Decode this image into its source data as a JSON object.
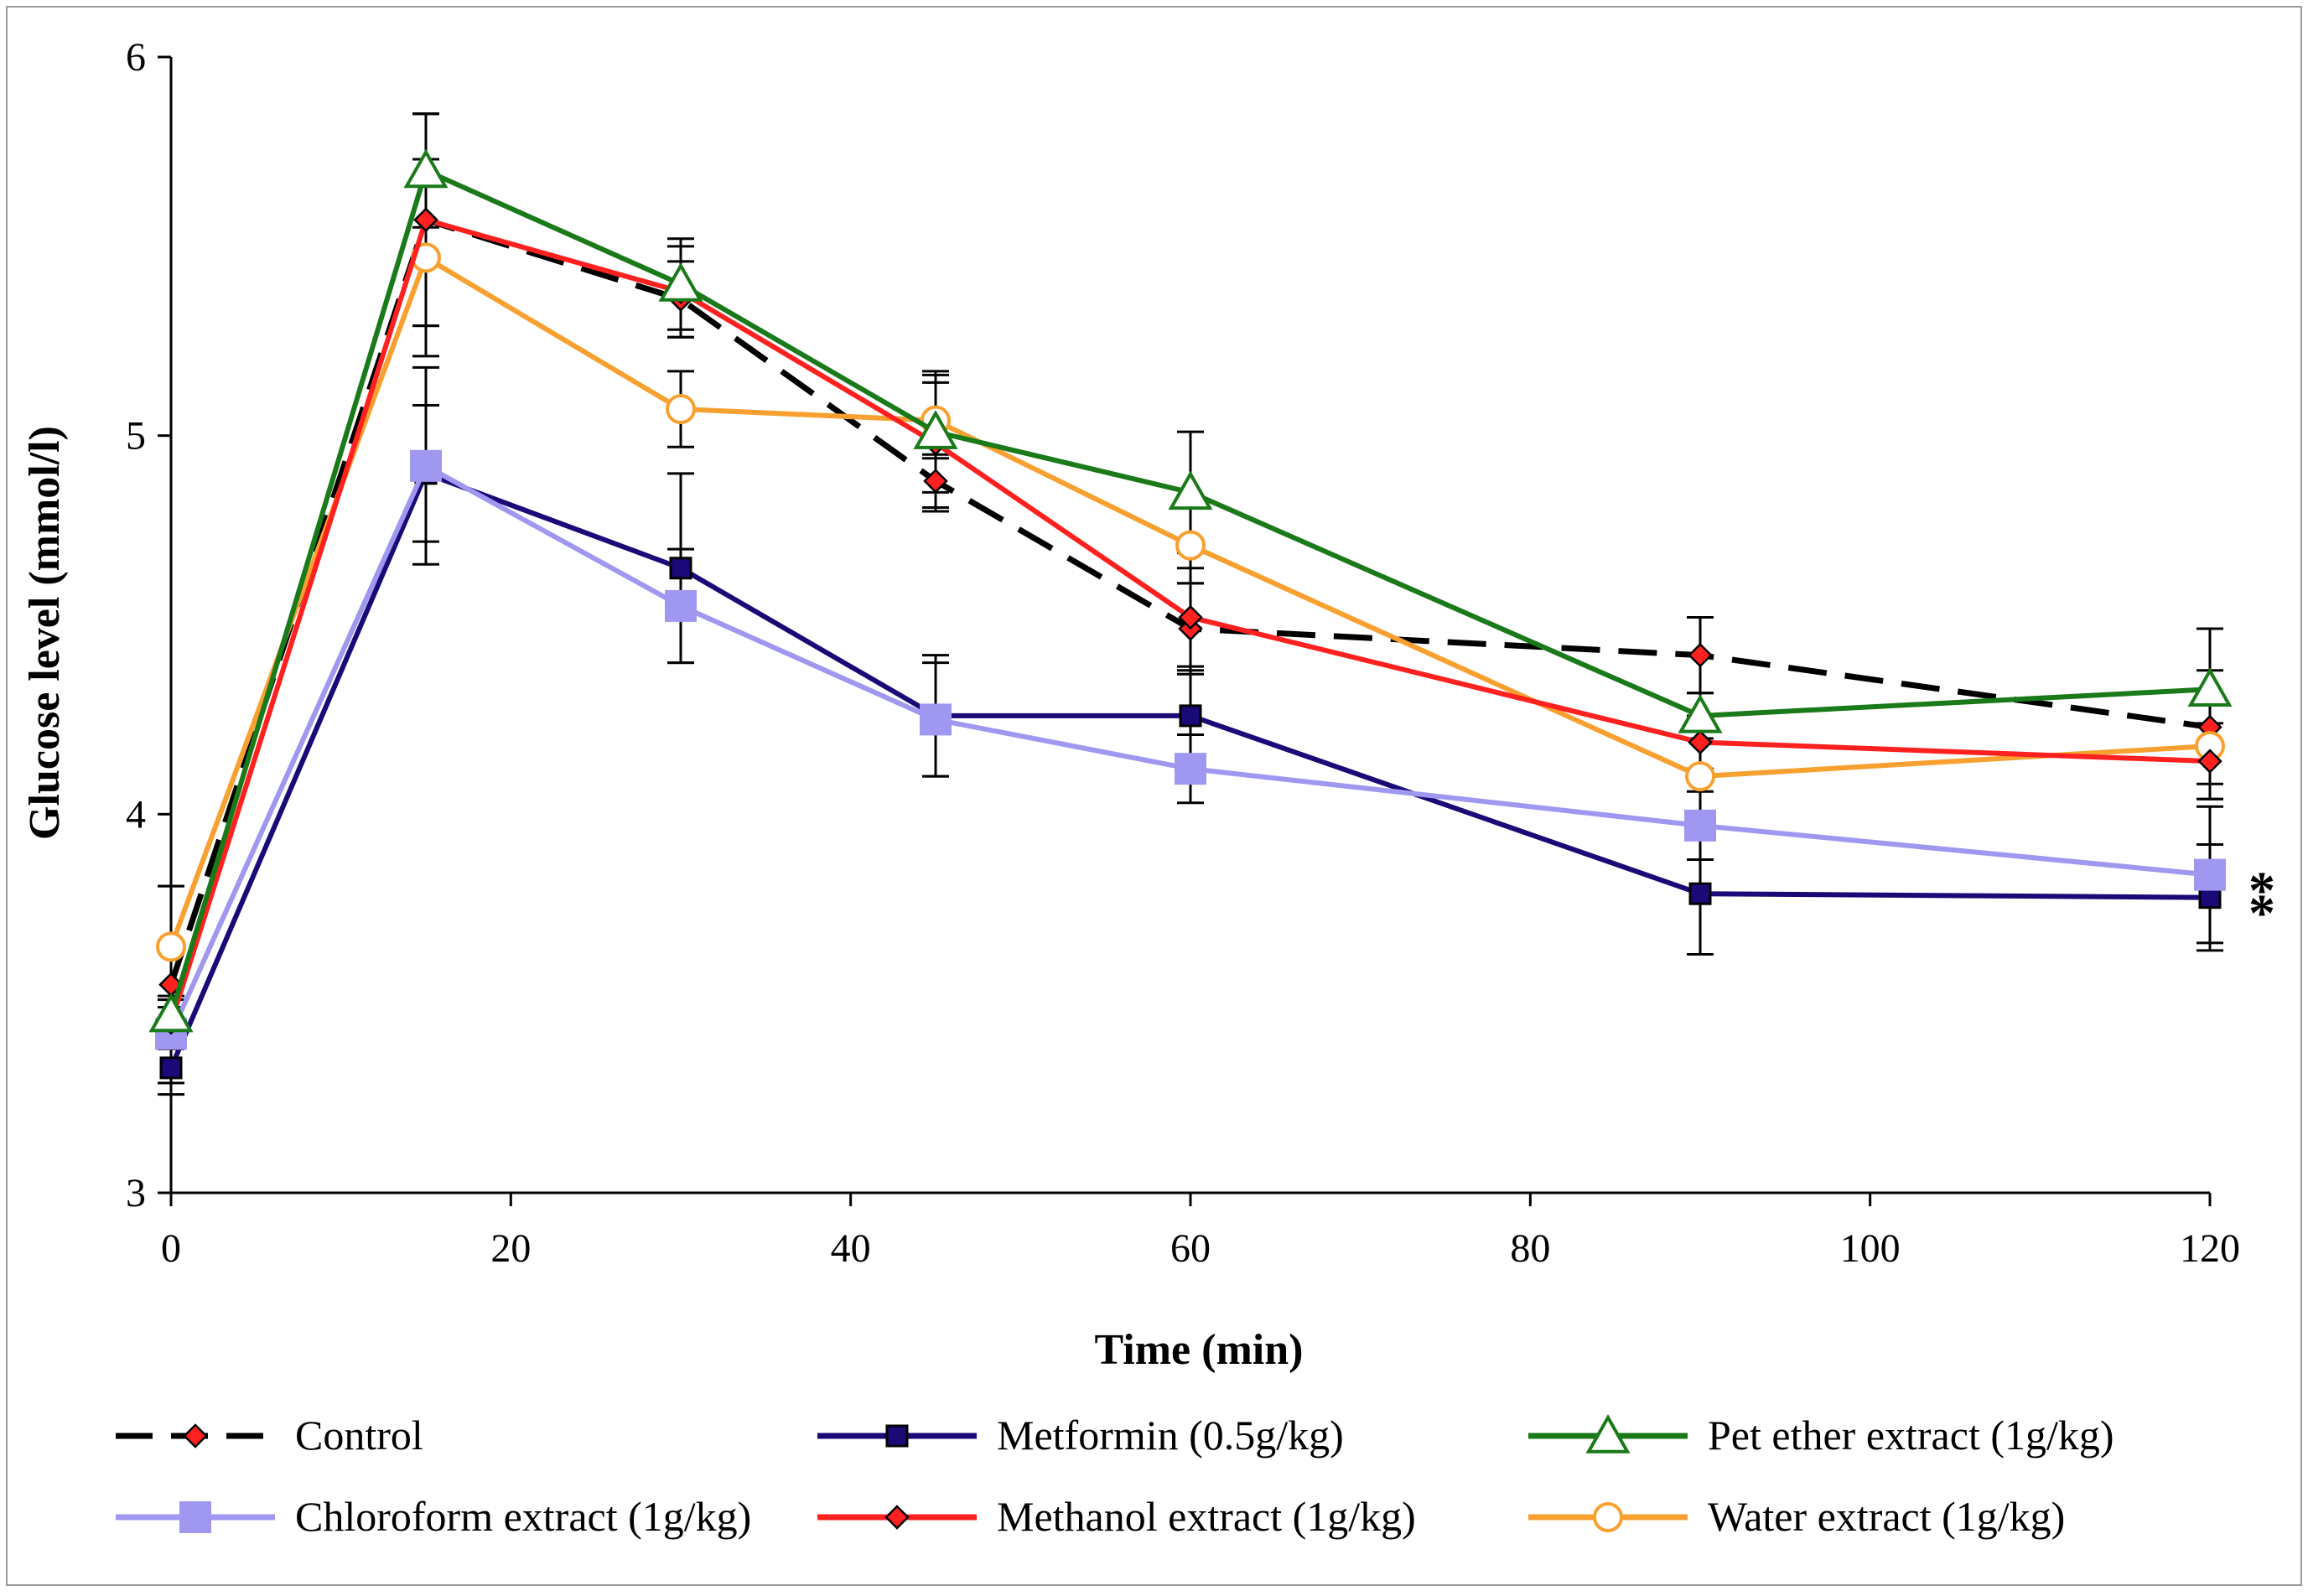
{
  "chart_data": {
    "type": "line",
    "title": "",
    "xlabel": "Time (min)",
    "ylabel": "Glucose level (mmol/l)",
    "xlim": [
      0,
      120
    ],
    "ylim": [
      3,
      6
    ],
    "x_ticks": [
      0,
      20,
      40,
      60,
      80,
      100,
      120
    ],
    "y_ticks": [
      3,
      4,
      5,
      6
    ],
    "grid": false,
    "legend_position": "bottom",
    "x": [
      0,
      15,
      30,
      45,
      60,
      90,
      120
    ],
    "series": [
      {
        "name": "Control",
        "color": "#000000",
        "dashed": true,
        "marker": "diamond",
        "marker_fill": "#ff2020",
        "values": [
          3.55,
          5.57,
          5.36,
          4.88,
          4.49,
          4.42,
          4.23
        ],
        "errors": [
          0.26,
          0.28,
          0.1,
          0.07,
          0.12,
          0.1,
          0.15
        ]
      },
      {
        "name": "Metformin (0.5g/kg)",
        "color": "#1a0a78",
        "dashed": false,
        "marker": "square",
        "marker_fill": "#1a0a78",
        "values": [
          3.33,
          4.9,
          4.65,
          4.26,
          4.26,
          3.79,
          3.78
        ],
        "errors": [
          0.07,
          0.18,
          0.25,
          0.16,
          0.12,
          0.16,
          0.14
        ]
      },
      {
        "name": "Pet ether extract (1g/kg)",
        "color": "#1a7a1a",
        "dashed": false,
        "marker": "triangle",
        "marker_fill": "#ffffff",
        "values": [
          3.47,
          5.7,
          5.4,
          5.01,
          4.85,
          4.26,
          4.33
        ],
        "errors": [
          0.05,
          0.15,
          0.12,
          0.16,
          0.16,
          0.06,
          0.16
        ]
      },
      {
        "name": "Chloroform extract (1g/kg)",
        "color": "#a098f0",
        "dashed": false,
        "marker": "square-large",
        "marker_fill": "#a098f0",
        "values": [
          3.42,
          4.92,
          4.55,
          4.25,
          4.12,
          3.97,
          3.84
        ],
        "errors": [
          0.04,
          0.26,
          0.15,
          0.15,
          0.09,
          0.09,
          0.18
        ]
      },
      {
        "name": "Methanol extract (1g/kg)",
        "color": "#ff2020",
        "dashed": false,
        "marker": "diamond",
        "marker_fill": "#ff2020",
        "values": [
          3.45,
          5.57,
          5.38,
          4.98,
          4.52,
          4.19,
          4.14
        ],
        "errors": [
          0.06,
          0.28,
          0.12,
          0.18,
          0.13,
          0.07,
          0.1
        ]
      },
      {
        "name": "Water extract (1g/kg)",
        "color": "#f8a030",
        "dashed": false,
        "marker": "circle",
        "marker_fill": "#ffffff",
        "values": [
          3.65,
          5.47,
          5.07,
          5.04,
          4.71,
          4.1,
          4.18
        ],
        "errors": [
          0.16,
          0.26,
          0.1,
          0.1,
          0.1,
          0.1,
          0.14
        ]
      }
    ],
    "annotations": [
      {
        "text": "*",
        "x": 120,
        "y": 3.84
      },
      {
        "text": "*",
        "x": 120,
        "y": 3.78
      }
    ]
  }
}
